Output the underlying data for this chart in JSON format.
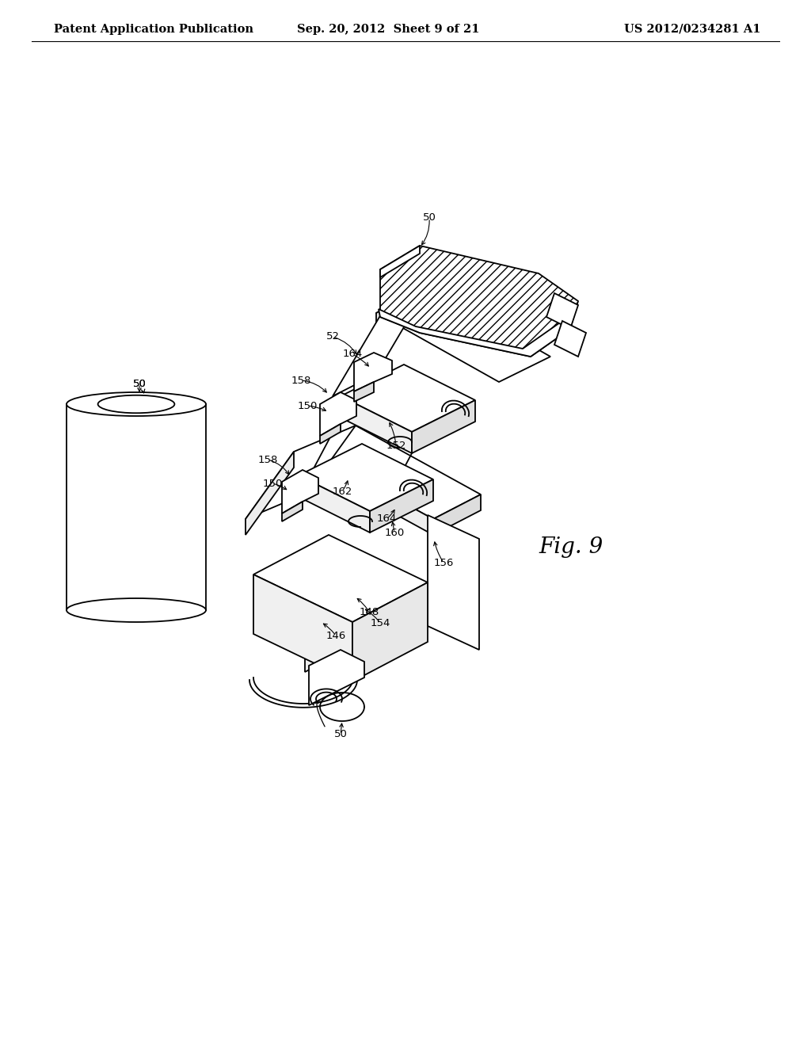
{
  "background_color": "#ffffff",
  "header_left": "Patent Application Publication",
  "header_center": "Sep. 20, 2012  Sheet 9 of 21",
  "header_right": "US 2012/0234281 A1",
  "fig_label": "Fig. 9",
  "header_fontsize": 10.5,
  "fig_label_fontsize": 20,
  "label_fontsize": 9.5
}
